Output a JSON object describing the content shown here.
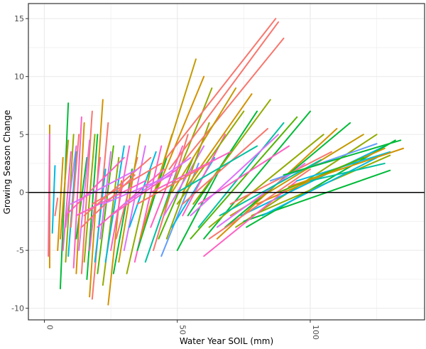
{
  "chart_data": {
    "type": "line",
    "title": "",
    "xlabel": "Water Year SOIL (mm)",
    "ylabel": "Growing Season Change",
    "xlim": [
      -6,
      143
    ],
    "ylim": [
      -11,
      16.3
    ],
    "xticks": [
      "0",
      "50",
      "100"
    ],
    "xtick_values": [
      0,
      50,
      100
    ],
    "yticks": [
      "-10",
      "-5",
      "0",
      "5",
      "10",
      "15"
    ],
    "ytick_values": [
      -10,
      -5,
      0,
      5,
      10,
      15
    ],
    "grid": true,
    "reference_line_y": 0,
    "legend": "none",
    "palette": [
      "#F8766D",
      "#D39200",
      "#93AA00",
      "#00BA38",
      "#00C19F",
      "#00B9E3",
      "#619CFF",
      "#DB72FB",
      "#FF61C3",
      "#C49A00",
      "#53B400"
    ],
    "segments_note_fields": [
      "x1",
      "y1",
      "x2",
      "y2",
      "color_index"
    ],
    "segments": [
      [
        2,
        -6.5,
        2,
        5.8,
        1
      ],
      [
        1.5,
        -5.5,
        2,
        5,
        8
      ],
      [
        3,
        -3.5,
        4,
        2.3,
        5
      ],
      [
        4,
        -2,
        5,
        -0.5,
        0
      ],
      [
        5,
        -5,
        7,
        3,
        1
      ],
      [
        6,
        -8.3,
        9,
        7.7,
        3
      ],
      [
        6,
        -4,
        9,
        4.5,
        1
      ],
      [
        7,
        -5,
        10,
        3.5,
        8
      ],
      [
        8,
        -6,
        11,
        5,
        2
      ],
      [
        8,
        -3,
        12,
        4,
        7
      ],
      [
        9,
        -5.5,
        12,
        3.5,
        5
      ],
      [
        10,
        -3,
        13,
        5,
        0
      ],
      [
        11,
        -6.5,
        14,
        6.5,
        8
      ],
      [
        12,
        -4,
        16,
        3,
        3
      ],
      [
        12,
        -7,
        15,
        6,
        1
      ],
      [
        13,
        -5,
        17,
        4.5,
        7
      ],
      [
        14,
        -7,
        18,
        7,
        0
      ],
      [
        15,
        -6,
        19,
        5,
        2
      ],
      [
        16,
        -7.5,
        20,
        5,
        3
      ],
      [
        17,
        -9,
        22,
        8,
        1
      ],
      [
        17,
        -5,
        21,
        3,
        8
      ],
      [
        18,
        -9.2,
        24,
        6,
        0
      ],
      [
        19,
        -6,
        23,
        2,
        5
      ],
      [
        20,
        -7,
        26,
        4,
        10
      ],
      [
        21,
        -4,
        25,
        3.5,
        7
      ],
      [
        22,
        -8,
        28,
        3,
        2
      ],
      [
        23,
        -6,
        30,
        4,
        5
      ],
      [
        24,
        -9.7,
        29,
        1,
        1
      ],
      [
        25,
        -5,
        32,
        4,
        8
      ],
      [
        26,
        -7,
        33,
        2,
        3
      ],
      [
        27,
        -4,
        35,
        3,
        0
      ],
      [
        28,
        -6,
        36,
        5,
        9
      ],
      [
        30,
        -5,
        38,
        4,
        7
      ],
      [
        31,
        -7,
        40,
        2,
        2
      ],
      [
        32,
        -3,
        42,
        3.5,
        5
      ],
      [
        34,
        -6,
        44,
        4,
        8
      ],
      [
        35,
        -5,
        46,
        3,
        3
      ],
      [
        36,
        -4,
        48,
        5,
        1
      ],
      [
        38,
        -6,
        50,
        2,
        4
      ],
      [
        40,
        -3,
        52,
        4,
        8
      ],
      [
        41,
        -5,
        54,
        5,
        0
      ],
      [
        43,
        -4,
        56,
        3,
        10
      ],
      [
        44,
        -5.5,
        58,
        2.5,
        6
      ],
      [
        45,
        -2,
        60,
        4,
        7
      ],
      [
        46,
        -4,
        62,
        6,
        2
      ],
      [
        48,
        -3,
        64,
        3,
        5
      ],
      [
        50,
        -5,
        66,
        2,
        3
      ],
      [
        52,
        -2,
        68,
        5,
        8
      ],
      [
        40,
        -1,
        57,
        11.5,
        9
      ],
      [
        42,
        0,
        60,
        10,
        1
      ],
      [
        44,
        -2,
        63,
        9,
        2
      ],
      [
        46,
        3,
        87,
        15,
        0
      ],
      [
        47,
        2,
        88,
        14.7,
        0
      ],
      [
        50,
        2,
        90,
        13.3,
        0
      ],
      [
        48,
        0,
        72,
        9,
        9
      ],
      [
        50,
        -1,
        75,
        7,
        2
      ],
      [
        52,
        0,
        78,
        8.5,
        1
      ],
      [
        54,
        -2,
        80,
        7,
        3
      ],
      [
        56,
        -1,
        85,
        8,
        2
      ],
      [
        58,
        -3,
        90,
        6,
        4
      ],
      [
        55,
        -4,
        95,
        6.5,
        10
      ],
      [
        60,
        -4,
        100,
        7,
        3
      ],
      [
        62,
        -3,
        105,
        5,
        2
      ],
      [
        65,
        -4,
        110,
        5.5,
        1
      ],
      [
        68,
        -3,
        115,
        6,
        3
      ],
      [
        70,
        -2,
        120,
        5,
        9
      ],
      [
        72,
        -3,
        125,
        5,
        2
      ],
      [
        74,
        -2,
        128,
        4,
        5
      ],
      [
        76,
        -3,
        132,
        4.5,
        3
      ],
      [
        75,
        -2.5,
        130,
        1.9,
        3
      ],
      [
        78,
        -2,
        130,
        3.2,
        2
      ],
      [
        80,
        -1,
        128,
        3.8,
        1
      ],
      [
        82,
        -2,
        125,
        3,
        5
      ],
      [
        60,
        -5.5,
        95,
        1,
        8
      ],
      [
        62,
        -4,
        100,
        2,
        0
      ],
      [
        65,
        -3,
        98,
        2.5,
        7
      ],
      [
        66,
        -2,
        104,
        2.8,
        4
      ],
      [
        70,
        -1,
        108,
        3.5,
        0
      ],
      [
        58,
        -1,
        92,
        4,
        8
      ],
      [
        55,
        -2,
        88,
        5,
        7
      ],
      [
        52,
        -1,
        84,
        5.5,
        0
      ],
      [
        50,
        0,
        80,
        4,
        4
      ],
      [
        20,
        -3,
        45,
        2,
        8
      ],
      [
        15,
        -2,
        40,
        3,
        0
      ],
      [
        10,
        -1,
        35,
        2,
        7
      ],
      [
        12,
        -2,
        38,
        1,
        8
      ],
      [
        18,
        -1,
        44,
        2.5,
        0
      ],
      [
        25,
        -2,
        50,
        2,
        8
      ],
      [
        30,
        -1,
        55,
        3,
        7
      ],
      [
        8,
        -2,
        30,
        3,
        8
      ],
      [
        14,
        -3,
        34,
        1.5,
        0
      ],
      [
        22,
        -1,
        48,
        1.5,
        7
      ],
      [
        35,
        -1,
        62,
        2.5,
        0
      ],
      [
        40,
        0,
        70,
        3.5,
        8
      ],
      [
        85,
        1,
        125,
        4.2,
        6
      ],
      [
        90,
        1.5,
        134,
        4.5,
        3
      ],
      [
        95,
        1,
        130,
        3.5,
        5
      ],
      [
        100,
        1,
        128,
        2.5,
        4
      ],
      [
        88,
        0,
        120,
        3,
        10
      ],
      [
        92,
        0.5,
        135,
        3.8,
        1
      ]
    ]
  }
}
